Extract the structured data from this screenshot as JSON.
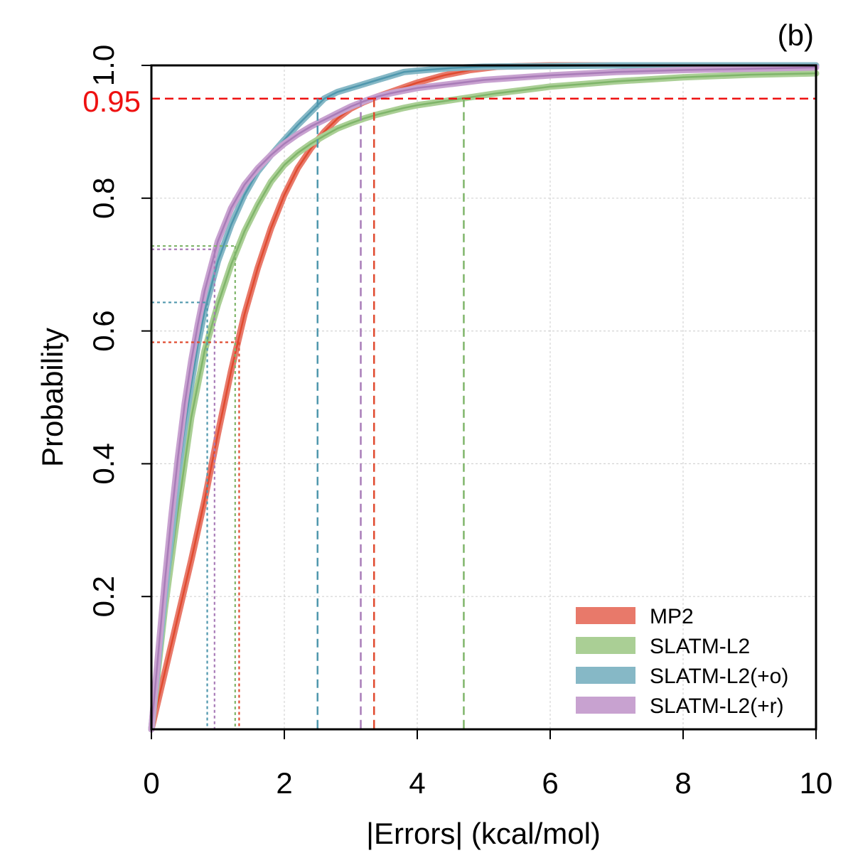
{
  "chart_data": {
    "type": "line",
    "panel_label": "(b)",
    "title": "",
    "xlabel": "|Errors| (kcal/mol)",
    "ylabel": "Probability",
    "xlim": [
      0,
      10
    ],
    "ylim": [
      0,
      1.0
    ],
    "x_ticks": [
      "0",
      "2",
      "4",
      "6",
      "8",
      "10"
    ],
    "y_ticks": [
      "0.2",
      "0.4",
      "0.6",
      "0.8",
      "1.0"
    ],
    "grid": true,
    "legend_position": "bottom-right",
    "reference_line": {
      "y": 0.95,
      "label": "0.95",
      "color": "#ee1111"
    },
    "series": [
      {
        "name": "MP2",
        "color": "#e8796a",
        "line_color": "#e04a2f",
        "marker_median": {
          "x": 1.32,
          "y": 0.583
        },
        "marker_95": {
          "x": 3.35
        },
        "points": [
          [
            0,
            0
          ],
          [
            0.2,
            0.085
          ],
          [
            0.4,
            0.17
          ],
          [
            0.6,
            0.255
          ],
          [
            0.8,
            0.345
          ],
          [
            1.0,
            0.445
          ],
          [
            1.2,
            0.54
          ],
          [
            1.4,
            0.625
          ],
          [
            1.6,
            0.695
          ],
          [
            1.8,
            0.755
          ],
          [
            2.0,
            0.805
          ],
          [
            2.2,
            0.845
          ],
          [
            2.4,
            0.875
          ],
          [
            2.6,
            0.9
          ],
          [
            2.8,
            0.92
          ],
          [
            3.0,
            0.935
          ],
          [
            3.2,
            0.945
          ],
          [
            3.4,
            0.953
          ],
          [
            3.6,
            0.96
          ],
          [
            3.8,
            0.967
          ],
          [
            4.0,
            0.974
          ],
          [
            4.4,
            0.985
          ],
          [
            4.8,
            0.993
          ],
          [
            5.2,
            0.998
          ],
          [
            6.0,
            1.0
          ],
          [
            10.0,
            1.0
          ]
        ]
      },
      {
        "name": "SLATM-L2",
        "color": "#aacf95",
        "line_color": "#7fb56a",
        "marker_median": {
          "x": 1.26,
          "y": 0.728
        },
        "marker_95": {
          "x": 4.7
        },
        "points": [
          [
            0,
            0
          ],
          [
            0.1,
            0.09
          ],
          [
            0.2,
            0.18
          ],
          [
            0.4,
            0.33
          ],
          [
            0.6,
            0.47
          ],
          [
            0.8,
            0.57
          ],
          [
            1.0,
            0.64
          ],
          [
            1.2,
            0.7
          ],
          [
            1.4,
            0.75
          ],
          [
            1.6,
            0.79
          ],
          [
            1.8,
            0.825
          ],
          [
            2.0,
            0.85
          ],
          [
            2.2,
            0.868
          ],
          [
            2.4,
            0.882
          ],
          [
            2.6,
            0.894
          ],
          [
            2.8,
            0.905
          ],
          [
            3.0,
            0.913
          ],
          [
            3.2,
            0.92
          ],
          [
            3.4,
            0.926
          ],
          [
            3.6,
            0.931
          ],
          [
            3.8,
            0.936
          ],
          [
            4.0,
            0.94
          ],
          [
            4.4,
            0.946
          ],
          [
            4.8,
            0.952
          ],
          [
            5.2,
            0.958
          ],
          [
            5.6,
            0.963
          ],
          [
            6.0,
            0.968
          ],
          [
            6.5,
            0.972
          ],
          [
            7.0,
            0.976
          ],
          [
            7.5,
            0.979
          ],
          [
            8.0,
            0.982
          ],
          [
            8.5,
            0.984
          ],
          [
            9.0,
            0.986
          ],
          [
            9.5,
            0.987
          ],
          [
            10.0,
            0.988
          ]
        ]
      },
      {
        "name": "SLATM-L2(+o)",
        "color": "#86b8c6",
        "line_color": "#4f97ad",
        "marker_median": {
          "x": 0.84,
          "y": 0.643
        },
        "marker_95": {
          "x": 2.5
        },
        "points": [
          [
            0,
            0
          ],
          [
            0.1,
            0.1
          ],
          [
            0.2,
            0.2
          ],
          [
            0.3,
            0.29
          ],
          [
            0.4,
            0.38
          ],
          [
            0.5,
            0.455
          ],
          [
            0.6,
            0.52
          ],
          [
            0.7,
            0.58
          ],
          [
            0.8,
            0.63
          ],
          [
            1.0,
            0.705
          ],
          [
            1.2,
            0.76
          ],
          [
            1.4,
            0.805
          ],
          [
            1.6,
            0.84
          ],
          [
            1.8,
            0.865
          ],
          [
            2.0,
            0.888
          ],
          [
            2.2,
            0.91
          ],
          [
            2.4,
            0.93
          ],
          [
            2.6,
            0.95
          ],
          [
            2.8,
            0.96
          ],
          [
            3.0,
            0.966
          ],
          [
            3.2,
            0.972
          ],
          [
            3.4,
            0.978
          ],
          [
            3.6,
            0.984
          ],
          [
            3.8,
            0.99
          ],
          [
            4.0,
            0.992
          ],
          [
            4.5,
            0.996
          ],
          [
            5.0,
            0.998
          ],
          [
            6.0,
            0.999
          ],
          [
            7.0,
            1.0
          ],
          [
            10.0,
            1.0
          ]
        ]
      },
      {
        "name": "SLATM-L2(+r)",
        "color": "#c8a2d0",
        "line_color": "#a97cb8",
        "marker_median": {
          "x": 0.95,
          "y": 0.723
        },
        "marker_95": {
          "x": 3.15
        },
        "points": [
          [
            0,
            0
          ],
          [
            0.1,
            0.11
          ],
          [
            0.2,
            0.22
          ],
          [
            0.3,
            0.32
          ],
          [
            0.4,
            0.41
          ],
          [
            0.5,
            0.49
          ],
          [
            0.6,
            0.555
          ],
          [
            0.7,
            0.61
          ],
          [
            0.8,
            0.66
          ],
          [
            1.0,
            0.735
          ],
          [
            1.2,
            0.785
          ],
          [
            1.4,
            0.82
          ],
          [
            1.6,
            0.845
          ],
          [
            1.8,
            0.865
          ],
          [
            2.0,
            0.882
          ],
          [
            2.2,
            0.896
          ],
          [
            2.4,
            0.908
          ],
          [
            2.6,
            0.918
          ],
          [
            2.8,
            0.928
          ],
          [
            3.0,
            0.938
          ],
          [
            3.2,
            0.946
          ],
          [
            3.4,
            0.953
          ],
          [
            3.6,
            0.958
          ],
          [
            3.8,
            0.962
          ],
          [
            4.0,
            0.966
          ],
          [
            4.5,
            0.972
          ],
          [
            5.0,
            0.978
          ],
          [
            6.0,
            0.985
          ],
          [
            7.0,
            0.99
          ],
          [
            8.0,
            0.993
          ],
          [
            9.0,
            0.995
          ],
          [
            10.0,
            0.997
          ]
        ]
      }
    ]
  }
}
